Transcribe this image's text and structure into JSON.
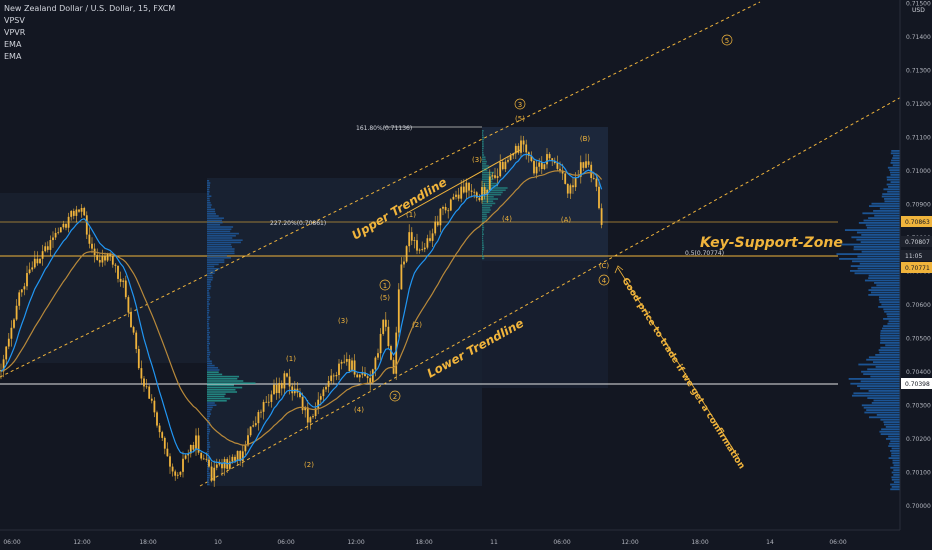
{
  "legend": {
    "symbol_title": "New Zealand Dollar / U.S. Dollar, 15, FXCM",
    "indicators": [
      "VPSV",
      "VPVR",
      "EMA",
      "EMA"
    ]
  },
  "price_axis": {
    "currency": "USD",
    "ticks": [
      "0.71500",
      "0.71400",
      "0.71300",
      "0.71200",
      "0.71100",
      "0.71000",
      "0.70900",
      "0.70800",
      "0.70700",
      "0.70600",
      "0.70500",
      "0.70400",
      "0.70300",
      "0.70200",
      "0.70100",
      "0.70000"
    ],
    "badges": [
      {
        "text": "0.70863",
        "kind": "orange"
      },
      {
        "text": "0.70807",
        "kind": "dark"
      },
      {
        "text": "11:05",
        "kind": "dark"
      },
      {
        "text": "0.70771",
        "kind": "orange"
      },
      {
        "text": "0.70398",
        "kind": "white"
      }
    ]
  },
  "time_axis": {
    "ticks": [
      "06:00",
      "12:00",
      "18:00",
      "10",
      "06:00",
      "12:00",
      "18:00",
      "11",
      "06:00",
      "12:00",
      "18:00",
      "14",
      "06:00"
    ]
  },
  "annotations": {
    "upper_trendline": "Upper Trendline",
    "lower_trendline": "Lower Trendline",
    "key_support_zone": "Key-Support-Zone",
    "fib_161": "161.80%(0.71136)",
    "fib_227": "227.20%(0.70861)",
    "fib_05": "0.5(0.70774)",
    "note": "Good price to trade if we get a confirmation"
  },
  "wave_labels": {
    "w1": "1",
    "w2": "2",
    "w3": "3",
    "w4": "4",
    "w5": "5",
    "s1": "(1)",
    "s2": "(2)",
    "s3": "(3)",
    "s4": "(4)",
    "s5": "(5)",
    "sA": "(A)",
    "sB": "(B)",
    "sC": "(C)"
  },
  "colors": {
    "background": "#131722",
    "candle": "#f0b43c",
    "ema_fast": "#2196f3",
    "ema_slow": "#b8893a",
    "trendline": "#f0b43c",
    "support": "#f0b43c",
    "volume_profile": "#1f5fa8",
    "volume_profile_hi": "#26a69a"
  }
}
